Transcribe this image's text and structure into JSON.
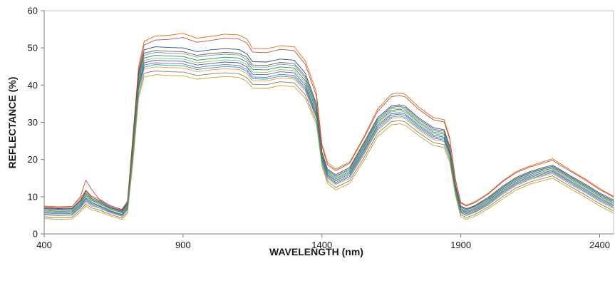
{
  "chart_data": {
    "type": "line",
    "title": "",
    "xlabel": "WAVELENGTH (nm)",
    "ylabel": "REFLECTANCE (%)",
    "xlim": [
      400,
      2450
    ],
    "ylim": [
      0,
      60
    ],
    "x_ticks": [
      400,
      900,
      1400,
      1900,
      2400
    ],
    "y_ticks": [
      0,
      10,
      20,
      30,
      40,
      50,
      60
    ],
    "grid": false,
    "legend": "none",
    "x": [
      400,
      450,
      500,
      530,
      550,
      570,
      600,
      640,
      680,
      700,
      720,
      740,
      760,
      800,
      850,
      900,
      950,
      1000,
      1050,
      1100,
      1130,
      1150,
      1200,
      1250,
      1300,
      1340,
      1380,
      1400,
      1420,
      1450,
      1500,
      1550,
      1600,
      1650,
      1680,
      1700,
      1750,
      1800,
      1840,
      1860,
      1880,
      1900,
      1920,
      1950,
      2000,
      2050,
      2100,
      2150,
      2200,
      2230,
      2260,
      2300,
      2350,
      2400,
      2450
    ],
    "series": [
      {
        "color": "#e46c0a",
        "values": [
          7.5,
          7.3,
          7.4,
          9.5,
          11.8,
          10.2,
          9.3,
          7.5,
          6.6,
          8.8,
          27.0,
          45.0,
          51.8,
          53.2,
          53.4,
          53.9,
          52.6,
          53.1,
          53.7,
          53.5,
          52.4,
          49.9,
          49.7,
          50.6,
          50.3,
          46.6,
          38.0,
          24.1,
          19.2,
          17.4,
          19.3,
          26.0,
          33.5,
          37.6,
          37.9,
          37.5,
          34.0,
          31.3,
          30.7,
          26.0,
          15.0,
          8.5,
          7.7,
          8.6,
          11.0,
          14.2,
          16.8,
          18.3,
          19.5,
          20.2,
          18.8,
          16.9,
          14.7,
          12.2,
          10.1
        ]
      },
      {
        "color": "#c0504d",
        "values": [
          7.3,
          7.1,
          7.3,
          10.0,
          14.5,
          12.0,
          9.1,
          7.6,
          6.5,
          8.7,
          26.5,
          44.0,
          50.8,
          52.1,
          52.3,
          52.8,
          51.5,
          52.0,
          52.6,
          52.4,
          51.3,
          48.9,
          48.7,
          49.6,
          49.3,
          45.6,
          37.1,
          23.5,
          18.6,
          17.0,
          19.0,
          25.6,
          32.9,
          36.9,
          37.2,
          36.8,
          33.4,
          30.7,
          30.1,
          25.5,
          14.7,
          8.3,
          7.5,
          8.4,
          10.8,
          14.0,
          16.5,
          18.0,
          19.1,
          19.8,
          18.4,
          16.6,
          14.4,
          11.9,
          9.9
        ]
      },
      {
        "color": "#1f4e9c",
        "values": [
          7.0,
          6.8,
          6.9,
          9.0,
          11.5,
          9.9,
          8.9,
          7.2,
          6.3,
          8.4,
          25.8,
          43.3,
          49.5,
          50.3,
          50.1,
          50.0,
          49.0,
          49.5,
          49.8,
          49.6,
          48.4,
          46.3,
          46.2,
          47.0,
          46.7,
          43.2,
          35.0,
          22.1,
          17.4,
          15.9,
          17.9,
          24.4,
          31.2,
          34.4,
          34.7,
          34.3,
          31.1,
          28.6,
          28.0,
          23.6,
          13.6,
          7.5,
          6.8,
          7.6,
          9.9,
          12.8,
          15.2,
          16.8,
          17.9,
          18.5,
          17.2,
          15.4,
          13.3,
          11.0,
          9.1
        ]
      },
      {
        "color": "#4bacc6",
        "values": [
          6.6,
          6.4,
          6.5,
          8.5,
          10.8,
          9.3,
          8.4,
          6.9,
          6.0,
          8.0,
          24.8,
          42.0,
          48.0,
          48.8,
          48.6,
          48.5,
          47.5,
          48.0,
          48.3,
          48.1,
          46.9,
          44.9,
          44.8,
          45.6,
          45.3,
          41.9,
          33.9,
          21.4,
          16.8,
          15.2,
          17.2,
          23.6,
          30.4,
          33.6,
          33.9,
          33.5,
          30.3,
          27.8,
          27.2,
          22.9,
          13.1,
          7.1,
          6.4,
          7.2,
          9.4,
          12.3,
          14.7,
          16.3,
          17.4,
          18.0,
          16.7,
          14.9,
          12.8,
          10.5,
          8.6
        ]
      },
      {
        "color": "#9bbb59",
        "values": [
          6.1,
          5.9,
          6.0,
          8.0,
          10.1,
          8.7,
          7.9,
          6.5,
          5.6,
          7.5,
          23.8,
          40.8,
          46.6,
          47.3,
          47.1,
          47.0,
          46.0,
          46.4,
          46.8,
          46.6,
          45.5,
          43.5,
          43.4,
          44.2,
          43.9,
          40.6,
          32.8,
          20.7,
          16.2,
          14.5,
          16.5,
          22.8,
          29.6,
          32.8,
          33.1,
          32.7,
          29.5,
          27.0,
          26.4,
          22.2,
          12.6,
          6.6,
          5.9,
          6.7,
          8.9,
          11.8,
          14.2,
          15.8,
          16.8,
          17.4,
          16.1,
          14.3,
          12.2,
          9.9,
          8.0
        ]
      },
      {
        "color": "#8064a2",
        "values": [
          5.6,
          5.4,
          5.5,
          7.4,
          9.4,
          8.1,
          7.4,
          6.0,
          5.1,
          7.0,
          22.6,
          39.6,
          45.4,
          46.0,
          45.8,
          45.7,
          44.7,
          45.2,
          45.5,
          45.3,
          44.2,
          42.2,
          42.1,
          42.9,
          42.6,
          39.4,
          31.8,
          20.0,
          15.6,
          13.8,
          15.8,
          22.0,
          28.7,
          31.9,
          32.2,
          31.8,
          28.7,
          26.2,
          25.6,
          21.5,
          12.1,
          6.1,
          5.4,
          6.2,
          8.3,
          11.2,
          13.6,
          15.2,
          16.2,
          16.8,
          15.5,
          13.7,
          11.6,
          9.3,
          7.4
        ]
      },
      {
        "color": "#f79646",
        "values": [
          5.1,
          4.9,
          5.0,
          6.9,
          8.7,
          7.5,
          6.9,
          5.6,
          4.7,
          6.5,
          21.5,
          38.5,
          44.3,
          44.9,
          44.7,
          44.6,
          43.6,
          44.1,
          44.4,
          44.2,
          43.1,
          41.2,
          41.1,
          41.9,
          41.6,
          38.4,
          31.0,
          19.4,
          14.9,
          13.2,
          15.0,
          21.1,
          27.8,
          31.0,
          31.3,
          30.9,
          27.9,
          25.4,
          24.8,
          20.8,
          11.6,
          5.6,
          4.9,
          5.7,
          7.8,
          10.6,
          13.0,
          14.6,
          15.6,
          16.2,
          14.9,
          13.1,
          11.0,
          8.7,
          6.8
        ]
      },
      {
        "color": "#7f7f7f",
        "values": [
          4.6,
          4.4,
          4.5,
          6.4,
          8.1,
          7.0,
          6.4,
          5.2,
          4.3,
          6.0,
          20.5,
          37.5,
          43.2,
          43.8,
          43.6,
          43.5,
          42.6,
          43.0,
          43.3,
          43.1,
          42.0,
          40.2,
          40.1,
          40.9,
          40.6,
          37.4,
          30.2,
          18.8,
          14.2,
          12.5,
          14.3,
          20.3,
          27.0,
          30.2,
          30.5,
          30.1,
          27.1,
          24.6,
          24.0,
          20.1,
          11.1,
          5.1,
          4.4,
          5.2,
          7.3,
          10.0,
          12.4,
          14.0,
          15.0,
          15.6,
          14.3,
          12.5,
          10.4,
          8.1,
          6.2
        ]
      },
      {
        "color": "#c9a227",
        "values": [
          4.1,
          3.9,
          4.0,
          5.9,
          7.5,
          6.5,
          5.9,
          4.8,
          3.9,
          5.5,
          19.5,
          36.5,
          42.2,
          42.8,
          42.6,
          42.5,
          41.6,
          42.0,
          42.3,
          42.1,
          41.0,
          39.2,
          39.1,
          39.9,
          39.6,
          36.5,
          29.4,
          18.2,
          13.6,
          11.8,
          13.6,
          19.5,
          26.1,
          29.3,
          29.6,
          29.2,
          26.3,
          23.8,
          23.2,
          19.4,
          10.6,
          4.6,
          3.9,
          4.7,
          6.8,
          9.4,
          11.8,
          13.4,
          14.4,
          15.0,
          13.7,
          11.9,
          9.8,
          7.5,
          5.6
        ]
      },
      {
        "color": "#3366cc",
        "values": [
          5.9,
          5.7,
          5.8,
          7.7,
          9.7,
          8.4,
          7.6,
          6.2,
          5.3,
          7.2,
          23.0,
          40.2,
          46.0,
          46.7,
          46.5,
          46.4,
          45.4,
          45.8,
          46.2,
          46.0,
          44.9,
          42.9,
          42.8,
          43.6,
          43.3,
          40.0,
          32.3,
          20.4,
          15.9,
          14.2,
          16.2,
          22.4,
          29.1,
          32.3,
          32.6,
          32.2,
          29.1,
          26.6,
          26.0,
          21.8,
          12.3,
          6.4,
          5.7,
          6.5,
          8.6,
          11.5,
          13.9,
          15.5,
          16.5,
          17.1,
          15.8,
          14.0,
          11.9,
          9.6,
          7.7
        ]
      },
      {
        "color": "#2e8b57",
        "values": [
          6.3,
          6.1,
          6.2,
          8.2,
          10.4,
          9.0,
          8.2,
          6.7,
          5.8,
          7.7,
          24.2,
          41.4,
          47.3,
          48.0,
          47.8,
          47.7,
          46.7,
          47.1,
          47.5,
          47.3,
          46.2,
          44.2,
          44.1,
          44.9,
          44.6,
          41.2,
          33.3,
          21.0,
          16.5,
          14.8,
          16.8,
          23.2,
          30.0,
          33.2,
          33.5,
          33.1,
          29.9,
          27.4,
          26.8,
          22.5,
          12.8,
          6.8,
          6.1,
          6.9,
          9.1,
          12.0,
          14.4,
          16.0,
          17.1,
          17.7,
          16.4,
          14.6,
          12.5,
          10.2,
          8.3
        ]
      },
      {
        "color": "#a0522d",
        "values": [
          6.8,
          6.6,
          6.7,
          8.8,
          11.0,
          9.5,
          8.6,
          7.0,
          6.1,
          8.1,
          25.2,
          42.6,
          48.6,
          49.3,
          49.1,
          49.0,
          48.0,
          48.5,
          48.8,
          48.6,
          47.5,
          45.4,
          45.3,
          46.1,
          45.8,
          42.4,
          34.4,
          21.7,
          17.1,
          15.5,
          17.5,
          24.0,
          30.8,
          34.0,
          34.3,
          33.9,
          30.7,
          28.2,
          27.6,
          23.3,
          13.3,
          7.3,
          6.6,
          7.4,
          9.6,
          12.5,
          14.9,
          16.5,
          17.6,
          18.2,
          16.9,
          15.1,
          13.0,
          10.7,
          8.8
        ]
      },
      {
        "color": "#17a2b8",
        "values": [
          5.3,
          5.1,
          5.2,
          7.1,
          9.0,
          7.8,
          7.1,
          5.8,
          4.9,
          6.7,
          22.0,
          39.0,
          44.8,
          45.5,
          45.3,
          45.2,
          44.2,
          44.6,
          45.0,
          44.8,
          43.7,
          41.7,
          41.6,
          42.4,
          42.1,
          38.9,
          31.4,
          19.7,
          15.2,
          13.5,
          15.4,
          21.5,
          28.2,
          31.4,
          31.7,
          31.3,
          28.3,
          25.8,
          25.2,
          21.1,
          11.8,
          5.8,
          5.1,
          5.9,
          8.0,
          10.9,
          13.3,
          14.9,
          15.9,
          16.5,
          15.2,
          13.4,
          11.3,
          9.0,
          7.1
        ]
      }
    ]
  }
}
